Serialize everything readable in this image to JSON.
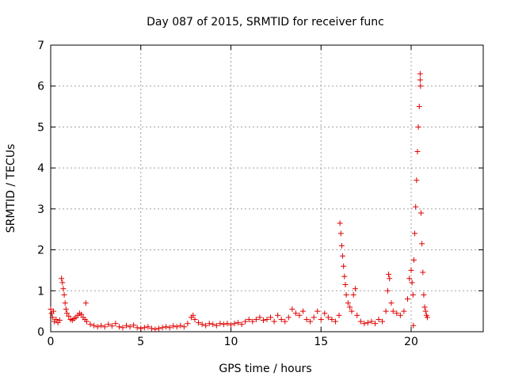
{
  "chart_data": {
    "type": "scatter",
    "title": "Day 087 of 2015, SRMTID for receiver func",
    "xlabel": "GPS time / hours",
    "ylabel": "SRMTID / TECUs",
    "xlim": [
      0,
      24
    ],
    "ylim": [
      0,
      7
    ],
    "x_ticks": [
      0,
      5,
      10,
      15,
      20
    ],
    "y_ticks": [
      0,
      1,
      2,
      3,
      4,
      5,
      6,
      7
    ],
    "grid": true,
    "marker": "+",
    "marker_color": "#e00000",
    "series": [
      {
        "name": "SRMTID",
        "points": [
          [
            0.0,
            0.55
          ],
          [
            0.05,
            0.45
          ],
          [
            0.1,
            0.35
          ],
          [
            0.15,
            0.5
          ],
          [
            0.2,
            0.25
          ],
          [
            0.3,
            0.3
          ],
          [
            0.4,
            0.22
          ],
          [
            0.5,
            0.28
          ],
          [
            0.6,
            1.3
          ],
          [
            0.65,
            1.2
          ],
          [
            0.7,
            1.05
          ],
          [
            0.75,
            0.9
          ],
          [
            0.8,
            0.7
          ],
          [
            0.85,
            0.55
          ],
          [
            0.9,
            0.45
          ],
          [
            1.0,
            0.38
          ],
          [
            1.1,
            0.3
          ],
          [
            1.2,
            0.28
          ],
          [
            1.3,
            0.32
          ],
          [
            1.4,
            0.35
          ],
          [
            1.5,
            0.4
          ],
          [
            1.6,
            0.45
          ],
          [
            1.7,
            0.42
          ],
          [
            1.8,
            0.35
          ],
          [
            1.9,
            0.3
          ],
          [
            1.95,
            0.7
          ],
          [
            2.0,
            0.25
          ],
          [
            2.2,
            0.18
          ],
          [
            2.4,
            0.15
          ],
          [
            2.6,
            0.12
          ],
          [
            2.8,
            0.15
          ],
          [
            3.0,
            0.12
          ],
          [
            3.2,
            0.18
          ],
          [
            3.4,
            0.14
          ],
          [
            3.6,
            0.2
          ],
          [
            3.8,
            0.12
          ],
          [
            4.0,
            0.1
          ],
          [
            4.2,
            0.15
          ],
          [
            4.4,
            0.12
          ],
          [
            4.6,
            0.16
          ],
          [
            4.8,
            0.1
          ],
          [
            5.0,
            0.08
          ],
          [
            5.2,
            0.1
          ],
          [
            5.4,
            0.12
          ],
          [
            5.6,
            0.08
          ],
          [
            5.8,
            0.06
          ],
          [
            6.0,
            0.08
          ],
          [
            6.2,
            0.1
          ],
          [
            6.4,
            0.12
          ],
          [
            6.6,
            0.1
          ],
          [
            6.8,
            0.14
          ],
          [
            7.0,
            0.12
          ],
          [
            7.2,
            0.15
          ],
          [
            7.4,
            0.12
          ],
          [
            7.6,
            0.2
          ],
          [
            7.8,
            0.35
          ],
          [
            7.9,
            0.4
          ],
          [
            8.0,
            0.3
          ],
          [
            8.2,
            0.22
          ],
          [
            8.4,
            0.18
          ],
          [
            8.6,
            0.15
          ],
          [
            8.8,
            0.2
          ],
          [
            9.0,
            0.18
          ],
          [
            9.2,
            0.15
          ],
          [
            9.4,
            0.2
          ],
          [
            9.6,
            0.18
          ],
          [
            9.8,
            0.2
          ],
          [
            10.0,
            0.17
          ],
          [
            10.2,
            0.2
          ],
          [
            10.4,
            0.22
          ],
          [
            10.6,
            0.18
          ],
          [
            10.8,
            0.25
          ],
          [
            11.0,
            0.3
          ],
          [
            11.2,
            0.25
          ],
          [
            11.4,
            0.3
          ],
          [
            11.6,
            0.35
          ],
          [
            11.8,
            0.28
          ],
          [
            12.0,
            0.3
          ],
          [
            12.2,
            0.35
          ],
          [
            12.4,
            0.25
          ],
          [
            12.6,
            0.4
          ],
          [
            12.8,
            0.3
          ],
          [
            13.0,
            0.25
          ],
          [
            13.2,
            0.35
          ],
          [
            13.4,
            0.55
          ],
          [
            13.6,
            0.45
          ],
          [
            13.8,
            0.4
          ],
          [
            14.0,
            0.5
          ],
          [
            14.2,
            0.3
          ],
          [
            14.4,
            0.25
          ],
          [
            14.6,
            0.35
          ],
          [
            14.8,
            0.5
          ],
          [
            15.0,
            0.3
          ],
          [
            15.2,
            0.45
          ],
          [
            15.4,
            0.35
          ],
          [
            15.6,
            0.3
          ],
          [
            15.8,
            0.25
          ],
          [
            16.0,
            0.4
          ],
          [
            16.05,
            2.65
          ],
          [
            16.1,
            2.4
          ],
          [
            16.15,
            2.1
          ],
          [
            16.2,
            1.85
          ],
          [
            16.25,
            1.6
          ],
          [
            16.3,
            1.35
          ],
          [
            16.35,
            1.15
          ],
          [
            16.4,
            0.9
          ],
          [
            16.5,
            0.7
          ],
          [
            16.6,
            0.6
          ],
          [
            16.7,
            0.5
          ],
          [
            16.8,
            0.9
          ],
          [
            16.9,
            1.05
          ],
          [
            17.0,
            0.4
          ],
          [
            17.2,
            0.25
          ],
          [
            17.4,
            0.2
          ],
          [
            17.6,
            0.22
          ],
          [
            17.8,
            0.25
          ],
          [
            18.0,
            0.2
          ],
          [
            18.2,
            0.3
          ],
          [
            18.4,
            0.25
          ],
          [
            18.6,
            0.5
          ],
          [
            18.7,
            1.0
          ],
          [
            18.75,
            1.4
          ],
          [
            18.8,
            1.3
          ],
          [
            18.9,
            0.7
          ],
          [
            19.0,
            0.5
          ],
          [
            19.2,
            0.45
          ],
          [
            19.4,
            0.4
          ],
          [
            19.6,
            0.5
          ],
          [
            19.8,
            0.8
          ],
          [
            19.9,
            1.3
          ],
          [
            20.0,
            1.5
          ],
          [
            20.05,
            1.2
          ],
          [
            20.1,
            0.9
          ],
          [
            20.12,
            0.15
          ],
          [
            20.15,
            1.75
          ],
          [
            20.2,
            2.4
          ],
          [
            20.25,
            3.05
          ],
          [
            20.3,
            3.7
          ],
          [
            20.35,
            4.4
          ],
          [
            20.4,
            5.0
          ],
          [
            20.45,
            5.5
          ],
          [
            20.5,
            6.3
          ],
          [
            20.5,
            6.15
          ],
          [
            20.52,
            6.0
          ],
          [
            20.55,
            2.9
          ],
          [
            20.6,
            2.15
          ],
          [
            20.65,
            1.45
          ],
          [
            20.7,
            0.9
          ],
          [
            20.75,
            0.6
          ],
          [
            20.8,
            0.5
          ],
          [
            20.85,
            0.4
          ],
          [
            20.9,
            0.35
          ]
        ]
      }
    ]
  }
}
